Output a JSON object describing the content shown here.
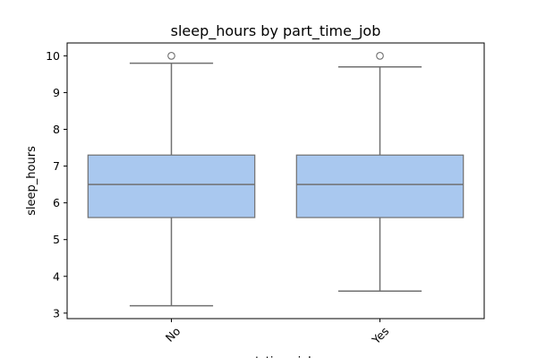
{
  "chart_data": {
    "type": "box",
    "title": "sleep_hours by part_time_job",
    "xlabel": "part_time_job",
    "ylabel": "sleep_hours",
    "ylim": [
      2.85,
      10.35
    ],
    "yticks": [
      3,
      4,
      5,
      6,
      7,
      8,
      9,
      10
    ],
    "grid": false,
    "categories": [
      "No",
      "Yes"
    ],
    "boxes": [
      {
        "category": "No",
        "whisker_low": 3.2,
        "q1": 5.6,
        "median": 6.5,
        "q3": 7.3,
        "whisker_high": 9.8,
        "outliers": [
          10.0
        ]
      },
      {
        "category": "Yes",
        "whisker_low": 3.6,
        "q1": 5.6,
        "median": 6.5,
        "q3": 7.3,
        "whisker_high": 9.7,
        "outliers": [
          10.0
        ]
      }
    ],
    "colors": {
      "box_fill": "#a9c8ef",
      "line": "#707070"
    }
  }
}
